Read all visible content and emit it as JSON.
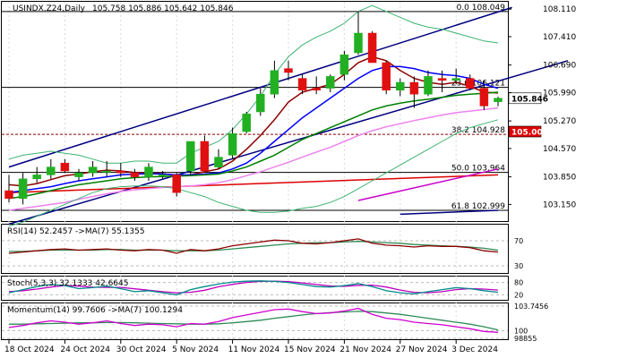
{
  "header": {
    "symbol_label": "USINDX.Z24,Daily",
    "ohlc_text": "105.758 105.886 105.642 105.846"
  },
  "chart_data": {
    "type": "candlestick",
    "symbol": "USINDX.Z24",
    "timeframe": "Daily",
    "last_ohlc": {
      "open": 105.758,
      "high": 105.886,
      "low": 105.642,
      "close": 105.846
    },
    "ylim": [
      102.75,
      108.25
    ],
    "x_tick_labels": [
      {
        "label": "18 Oct 2024",
        "index": 0
      },
      {
        "label": "24 Oct 2024",
        "index": 4
      },
      {
        "label": "30 Oct 2024",
        "index": 8
      },
      {
        "label": "5 Nov 2024",
        "index": 12
      },
      {
        "label": "11 Nov 2024",
        "index": 16
      },
      {
        "label": "15 Nov 2024",
        "index": 20
      },
      {
        "label": "21 Nov 2024",
        "index": 24
      },
      {
        "label": "27 Nov 2024",
        "index": 28
      },
      {
        "label": "3 Dec 2024",
        "index": 32
      }
    ],
    "y_tick_labels": [
      "108.110",
      "107.410",
      "106.690",
      "105.990",
      "105.270",
      "104.570",
      "103.850",
      "103.150"
    ],
    "price_badges": [
      {
        "value": "105.846",
        "bg": "#ffffff",
        "fg": "#000000"
      },
      {
        "value": "105.000",
        "bg": "#e00000",
        "fg": "#ffffff"
      }
    ],
    "fibonacci_levels": [
      {
        "label": "0.0 108.049",
        "value": 108.049,
        "color": "#000000",
        "dashed": false
      },
      {
        "label": "23.6 106.121",
        "value": 106.121,
        "color": "#000000",
        "dashed": false
      },
      {
        "label": "38.2 104.928",
        "value": 104.928,
        "color": "#8b0000",
        "dashed": true
      },
      {
        "label": "50.0 103.964",
        "value": 103.964,
        "color": "#000000",
        "dashed": false
      },
      {
        "label": "61.8 102.999",
        "value": 102.999,
        "color": "#000000",
        "dashed": false
      }
    ],
    "candles": [
      {
        "o": 103.5,
        "h": 103.9,
        "l": 103.2,
        "c": 103.3
      },
      {
        "o": 103.3,
        "h": 103.95,
        "l": 103.15,
        "c": 103.8
      },
      {
        "o": 103.8,
        "h": 104.1,
        "l": 103.7,
        "c": 103.9
      },
      {
        "o": 103.9,
        "h": 104.3,
        "l": 103.8,
        "c": 104.1
      },
      {
        "o": 104.2,
        "h": 104.3,
        "l": 103.95,
        "c": 104.0
      },
      {
        "o": 103.85,
        "h": 104.05,
        "l": 103.75,
        "c": 103.95
      },
      {
        "o": 103.95,
        "h": 104.25,
        "l": 103.85,
        "c": 104.1
      },
      {
        "o": 104.0,
        "h": 104.25,
        "l": 103.85,
        "c": 104.0
      },
      {
        "o": 104.0,
        "h": 104.2,
        "l": 103.85,
        "c": 103.95
      },
      {
        "o": 103.95,
        "h": 104.05,
        "l": 103.75,
        "c": 103.85
      },
      {
        "o": 103.85,
        "h": 104.2,
        "l": 103.75,
        "c": 104.1
      },
      {
        "o": 103.9,
        "h": 104.0,
        "l": 103.8,
        "c": 103.9
      },
      {
        "o": 103.9,
        "h": 103.95,
        "l": 103.35,
        "c": 103.45
      },
      {
        "o": 104.0,
        "h": 104.75,
        "l": 103.9,
        "c": 104.75
      },
      {
        "o": 104.75,
        "h": 104.9,
        "l": 104.0,
        "c": 104.0
      },
      {
        "o": 104.1,
        "h": 104.55,
        "l": 104.05,
        "c": 104.35
      },
      {
        "o": 104.4,
        "h": 105.1,
        "l": 104.3,
        "c": 104.95
      },
      {
        "o": 105.0,
        "h": 105.5,
        "l": 104.95,
        "c": 105.45
      },
      {
        "o": 105.5,
        "h": 106.1,
        "l": 105.4,
        "c": 105.95
      },
      {
        "o": 105.95,
        "h": 106.8,
        "l": 105.85,
        "c": 106.55
      },
      {
        "o": 106.6,
        "h": 106.8,
        "l": 106.3,
        "c": 106.5
      },
      {
        "o": 106.35,
        "h": 106.45,
        "l": 105.95,
        "c": 106.05
      },
      {
        "o": 106.1,
        "h": 106.4,
        "l": 105.95,
        "c": 106.05
      },
      {
        "o": 106.1,
        "h": 106.45,
        "l": 106.0,
        "c": 106.4
      },
      {
        "o": 106.45,
        "h": 107.05,
        "l": 106.3,
        "c": 106.95
      },
      {
        "o": 107.0,
        "h": 108.05,
        "l": 106.95,
        "c": 107.5
      },
      {
        "o": 107.5,
        "h": 107.55,
        "l": 106.75,
        "c": 106.75
      },
      {
        "o": 106.75,
        "h": 106.8,
        "l": 105.95,
        "c": 106.05
      },
      {
        "o": 106.05,
        "h": 106.35,
        "l": 105.9,
        "c": 106.25
      },
      {
        "o": 106.25,
        "h": 106.4,
        "l": 105.6,
        "c": 105.95
      },
      {
        "o": 105.95,
        "h": 106.55,
        "l": 105.9,
        "c": 106.4
      },
      {
        "o": 106.35,
        "h": 106.55,
        "l": 106.0,
        "c": 106.3
      },
      {
        "o": 106.3,
        "h": 106.6,
        "l": 106.2,
        "c": 106.35
      },
      {
        "o": 106.35,
        "h": 106.45,
        "l": 106.05,
        "c": 106.1
      },
      {
        "o": 106.1,
        "h": 106.3,
        "l": 105.55,
        "c": 105.65
      },
      {
        "o": 105.758,
        "h": 105.886,
        "l": 105.642,
        "c": 105.846
      }
    ],
    "trend_lines": [
      {
        "name": "upper-channel",
        "color": "#000080",
        "from": {
          "i": 0,
          "v": 104.1
        },
        "to": {
          "i": 36,
          "v": 108.15
        }
      },
      {
        "name": "lower-channel",
        "color": "#000080",
        "from": {
          "i": 0,
          "v": 102.65
        },
        "to": {
          "i": 40,
          "v": 106.8
        }
      },
      {
        "name": "lower-extension",
        "color": "#000080",
        "from": {
          "i": 28,
          "v": 102.9
        },
        "to": {
          "i": 35,
          "v": 103.0
        }
      },
      {
        "name": "red-support",
        "color": "#dd0000",
        "from": {
          "i": 0,
          "v": 103.45
        },
        "to": {
          "i": 35,
          "v": 103.9
        }
      },
      {
        "name": "magenta-support",
        "color": "#cc00cc",
        "from": {
          "i": 25,
          "v": 103.25
        },
        "to": {
          "i": 35,
          "v": 104.05
        }
      }
    ],
    "moving_averages": [
      {
        "name": "ma-red",
        "color": "#8b0000",
        "values": [
          103.65,
          103.62,
          103.68,
          103.78,
          103.88,
          103.92,
          103.98,
          104.02,
          104.0,
          103.96,
          103.95,
          103.93,
          103.88,
          103.9,
          103.98,
          104.05,
          104.25,
          104.55,
          104.9,
          105.3,
          105.75,
          106.0,
          106.1,
          106.2,
          106.45,
          106.75,
          106.9,
          106.8,
          106.55,
          106.35,
          106.25,
          106.2,
          106.25,
          106.15,
          106.0,
          105.98
        ]
      },
      {
        "name": "ma-blue",
        "color": "#0000ff",
        "values": [
          103.45,
          103.5,
          103.55,
          103.6,
          103.68,
          103.75,
          103.8,
          103.85,
          103.9,
          103.92,
          103.93,
          103.92,
          103.9,
          103.9,
          103.92,
          103.95,
          104.05,
          104.2,
          104.45,
          104.75,
          105.05,
          105.35,
          105.6,
          105.85,
          106.1,
          106.35,
          106.55,
          106.65,
          106.65,
          106.6,
          106.5,
          106.45,
          106.42,
          106.35,
          106.2,
          106.1
        ]
      },
      {
        "name": "ma-green",
        "color": "#008000",
        "values": [
          103.3,
          103.35,
          103.42,
          103.5,
          103.58,
          103.65,
          103.7,
          103.75,
          103.8,
          103.83,
          103.85,
          103.86,
          103.87,
          103.88,
          103.9,
          103.92,
          104.0,
          104.1,
          104.25,
          104.4,
          104.6,
          104.8,
          104.95,
          105.1,
          105.25,
          105.4,
          105.55,
          105.65,
          105.72,
          105.78,
          105.82,
          105.87,
          105.92,
          105.95,
          105.97,
          106.0
        ]
      },
      {
        "name": "ma-violet",
        "color": "#ee82ee",
        "values": [
          103.0,
          103.05,
          103.1,
          103.15,
          103.2,
          103.28,
          103.35,
          103.42,
          103.48,
          103.52,
          103.55,
          103.58,
          103.6,
          103.62,
          103.65,
          103.7,
          103.78,
          103.88,
          103.98,
          104.1,
          104.22,
          104.35,
          104.48,
          104.6,
          104.75,
          104.9,
          105.02,
          105.12,
          105.2,
          105.28,
          105.35,
          105.42,
          105.48,
          105.52,
          105.56,
          105.6
        ]
      },
      {
        "name": "bb-upper",
        "color": "#3cb371",
        "values": [
          104.3,
          104.4,
          104.45,
          104.5,
          104.45,
          104.4,
          104.3,
          104.2,
          104.2,
          104.25,
          104.25,
          104.2,
          104.2,
          104.45,
          104.6,
          104.75,
          105.05,
          105.45,
          105.9,
          106.45,
          106.9,
          107.2,
          107.4,
          107.55,
          107.75,
          108.05,
          108.2,
          108.05,
          107.9,
          107.75,
          107.65,
          107.6,
          107.5,
          107.4,
          107.3,
          107.25
        ]
      },
      {
        "name": "bb-lower",
        "color": "#3cb371",
        "values": [
          102.6,
          102.7,
          102.85,
          103.0,
          103.15,
          103.3,
          103.45,
          103.55,
          103.6,
          103.62,
          103.62,
          103.6,
          103.55,
          103.45,
          103.35,
          103.2,
          103.1,
          103.0,
          102.95,
          102.95,
          102.98,
          103.05,
          103.1,
          103.2,
          103.35,
          103.55,
          103.75,
          103.95,
          104.15,
          104.35,
          104.55,
          104.75,
          104.95,
          105.1,
          105.2,
          105.3
        ]
      }
    ]
  },
  "rsi_panel": {
    "label": "RSI(14) 52.2457 ->MA(7) 55.1355",
    "tick_labels": [
      "70",
      "30"
    ],
    "values": [
      50,
      52,
      54,
      56,
      57,
      55,
      56,
      57,
      55,
      54,
      56,
      55,
      50,
      56,
      54,
      57,
      62,
      65,
      68,
      71,
      70,
      66,
      65,
      67,
      70,
      73,
      66,
      63,
      62,
      60,
      62,
      61,
      61,
      59,
      54,
      52
    ],
    "ma_values": [
      53,
      53,
      54,
      55,
      55,
      55,
      55,
      56,
      56,
      55,
      55,
      55,
      54,
      54,
      54,
      55,
      57,
      59,
      61,
      63,
      65,
      66,
      67,
      67,
      68,
      69,
      68,
      67,
      66,
      64,
      63,
      62,
      61,
      60,
      58,
      55
    ]
  },
  "stoch_panel": {
    "label": "Stoch(5,3,3) 32.1333 42.6645",
    "tick_labels": [
      "80",
      "20"
    ],
    "k_values": [
      30,
      45,
      60,
      70,
      65,
      50,
      55,
      62,
      50,
      35,
      40,
      30,
      20,
      45,
      60,
      72,
      82,
      86,
      88,
      85,
      80,
      70,
      60,
      58,
      65,
      75,
      60,
      40,
      30,
      25,
      35,
      45,
      55,
      50,
      40,
      32
    ],
    "d_values": [
      35,
      40,
      48,
      58,
      65,
      62,
      57,
      56,
      56,
      49,
      42,
      35,
      30,
      32,
      42,
      59,
      71,
      80,
      85,
      86,
      84,
      78,
      70,
      63,
      61,
      66,
      67,
      58,
      43,
      32,
      30,
      35,
      45,
      50,
      48,
      43
    ]
  },
  "momentum_panel": {
    "label": "Momentum(14) 99.7606 ->MA(7) 100.1294",
    "tick_labels": [
      "103.7456",
      "100",
      "98855"
    ],
    "values": [
      100.5,
      100.8,
      101.2,
      101.5,
      101.3,
      101.0,
      101.2,
      101.5,
      101.1,
      100.8,
      101.0,
      100.9,
      100.6,
      101.1,
      101.0,
      101.4,
      102.0,
      102.4,
      102.8,
      103.2,
      103.3,
      102.9,
      102.6,
      102.7,
      103.0,
      103.4,
      102.5,
      101.9,
      101.7,
      101.3,
      101.1,
      100.9,
      100.6,
      100.3,
      99.9,
      99.76
    ],
    "ma_values": [
      101.0,
      101.0,
      101.05,
      101.1,
      101.15,
      101.2,
      101.2,
      101.25,
      101.25,
      101.2,
      101.15,
      101.1,
      101.05,
      101.0,
      101.0,
      101.05,
      101.2,
      101.4,
      101.6,
      101.9,
      102.15,
      102.4,
      102.6,
      102.75,
      102.85,
      102.95,
      102.9,
      102.7,
      102.5,
      102.2,
      101.9,
      101.6,
      101.3,
      101.0,
      100.6,
      100.13
    ]
  },
  "colors": {
    "bull_candle": "#22b022",
    "bear_candle": "#e01010",
    "grid": "#d8d8d8",
    "panel_border": "#000000"
  }
}
